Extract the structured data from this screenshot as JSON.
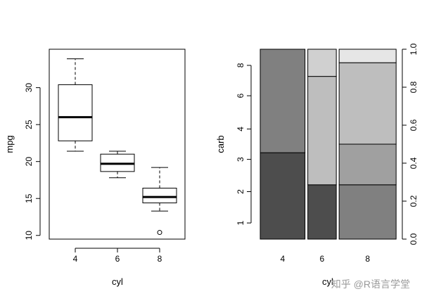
{
  "chart_data": [
    {
      "type": "box",
      "xlabel": "cyl",
      "ylabel": "mpg",
      "categories": [
        "4",
        "6",
        "8"
      ],
      "y_ticks": [
        10,
        15,
        20,
        25,
        30
      ],
      "ylim": [
        9.5,
        35.2
      ],
      "boxes": [
        {
          "category": "4",
          "whisker_low": 21.4,
          "q1": 22.8,
          "median": 26.0,
          "q3": 30.4,
          "whisker_high": 33.9,
          "outliers": []
        },
        {
          "category": "6",
          "whisker_low": 17.8,
          "q1": 18.65,
          "median": 19.7,
          "q3": 21.0,
          "whisker_high": 21.4,
          "outliers": []
        },
        {
          "category": "8",
          "whisker_low": 13.3,
          "q1": 14.4,
          "median": 15.2,
          "q3": 16.4,
          "whisker_high": 19.2,
          "outliers": [
            10.4
          ]
        }
      ]
    },
    {
      "type": "spineplot",
      "xlabel": "cyl",
      "ylabel": "carb",
      "categories": [
        "4",
        "6",
        "8"
      ],
      "category_widths": [
        0.344,
        0.219,
        0.438
      ],
      "levels": [
        "1",
        "2",
        "3",
        "4",
        "6",
        "8"
      ],
      "left_axis_labels": [
        "1",
        "2",
        "3",
        "4",
        "6",
        "8"
      ],
      "right_axis_ticks": [
        0.0,
        0.2,
        0.4,
        0.6,
        0.8,
        1.0
      ],
      "segments": [
        [
          {
            "top": 0.455,
            "color": "#4d4d4d"
          },
          {
            "top": 1.0,
            "color": "#808080"
          }
        ],
        [
          {
            "top": 0.286,
            "color": "#4d4d4d"
          },
          {
            "top": 0.857,
            "color": "#bebebe"
          },
          {
            "top": 1.0,
            "color": "#d0d0d0"
          }
        ],
        [
          {
            "top": 0.286,
            "color": "#808080"
          },
          {
            "top": 0.5,
            "color": "#a0a0a0"
          },
          {
            "top": 0.929,
            "color": "#bebebe"
          },
          {
            "top": 1.0,
            "color": "#e6e6e6"
          }
        ]
      ]
    }
  ],
  "watermark": "知乎 @R语言学堂"
}
